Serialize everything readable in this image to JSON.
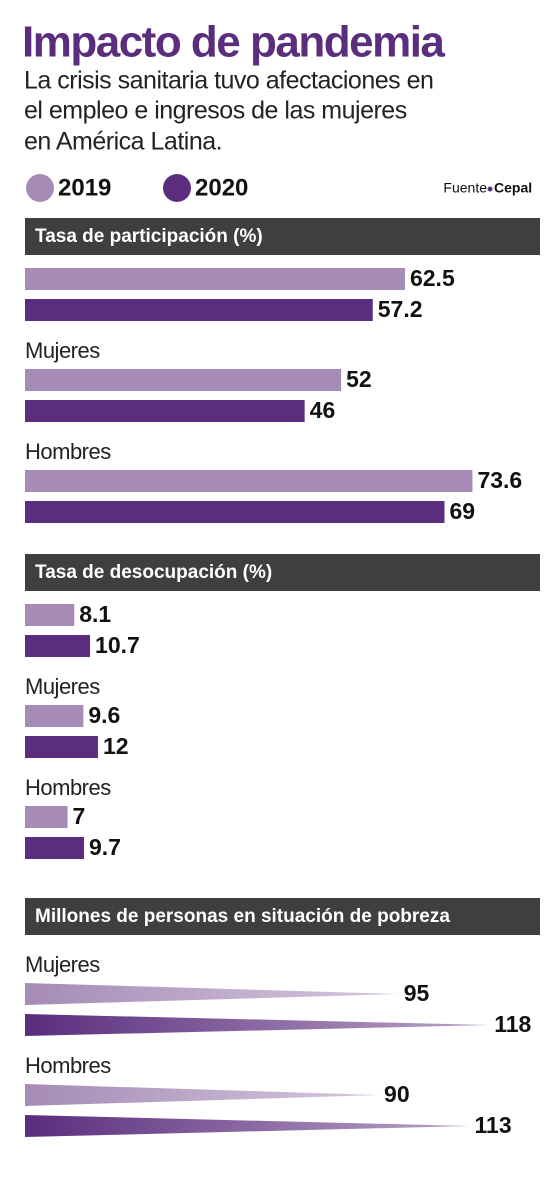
{
  "header": {
    "title": "Impacto de pandemia",
    "subtitle": [
      "La crisis sanitaria tuvo afectaciones en",
      "el empleo e ingresos de las mujeres",
      "en América Latina."
    ],
    "source_label": "Fuente",
    "source": "Cepal"
  },
  "legend": [
    {
      "name": "2019",
      "color": "#a58bb6"
    },
    {
      "name": "2020",
      "color": "#5a2d7d"
    }
  ],
  "chart_data": [
    {
      "type": "bar",
      "title": "Tasa de participación (%)",
      "categories": [
        null,
        "Mujeres",
        "Hombres"
      ],
      "series": [
        {
          "values": [
            62.5,
            52,
            73.6
          ]
        },
        {
          "values": [
            57.2,
            46,
            69
          ]
        }
      ],
      "xlim": [
        0,
        88
      ]
    },
    {
      "type": "bar",
      "title": "Tasa de desocupación (%)",
      "categories": [
        null,
        "Mujeres",
        "Hombres"
      ],
      "series": [
        {
          "values": [
            8.1,
            9.6,
            7
          ]
        },
        {
          "values": [
            10.7,
            12,
            9.7
          ]
        }
      ],
      "xlim": [
        0,
        88
      ]
    },
    {
      "type": "taper",
      "title": "Millones de personas en situación de pobreza",
      "categories": [
        "Mujeres",
        "Hombres"
      ],
      "series": [
        {
          "values": [
            95,
            90
          ]
        },
        {
          "values": [
            118,
            113
          ]
        }
      ],
      "xlim": [
        0,
        136
      ]
    }
  ]
}
